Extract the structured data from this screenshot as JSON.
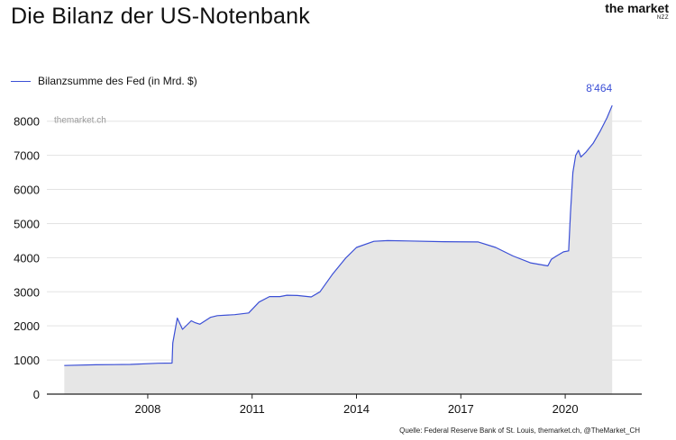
{
  "title": "Die Bilanz der US-Notenbank",
  "brand": {
    "name": "the market",
    "sub": "NZZ"
  },
  "source": "Quelle: Federal Reserve Bank of St. Louis, themarket.ch, @TheMarket_CH",
  "watermark": "themarket.ch",
  "colors": {
    "line": "#3b4fd6",
    "area": "#e6e6e6",
    "grid": "#e3e3e3",
    "axis": "#222222"
  },
  "chart_data": {
    "type": "area",
    "title": "Die Bilanz der US-Notenbank",
    "legend_position": "top-left",
    "grid": true,
    "ylim": [
      0,
      8600
    ],
    "xlim": [
      2005.1,
      2022.2
    ],
    "y_ticks": [
      0,
      1000,
      2000,
      3000,
      4000,
      5000,
      6000,
      7000,
      8000
    ],
    "y_tick_labels": [
      "0",
      "1000",
      "2000",
      "3000",
      "4000",
      "5000",
      "6000",
      "7000",
      "8000"
    ],
    "x_ticks": [
      2008,
      2011,
      2014,
      2017,
      2020
    ],
    "x_tick_labels": [
      "2008",
      "2011",
      "2014",
      "2017",
      "2020"
    ],
    "series": [
      {
        "name": "Bilanzsumme des Fed (in Mrd. $)",
        "end_label": "8'464",
        "x": [
          2005.6,
          2006.5,
          2007.5,
          2008.3,
          2008.7,
          2008.72,
          2008.85,
          2009.0,
          2009.25,
          2009.35,
          2009.5,
          2009.65,
          2009.8,
          2010.0,
          2010.5,
          2010.9,
          2011.2,
          2011.5,
          2011.8,
          2012.0,
          2012.3,
          2012.7,
          2012.95,
          2013.3,
          2013.7,
          2014.0,
          2014.5,
          2014.9,
          2015.5,
          2016.5,
          2017.5,
          2018.0,
          2018.5,
          2019.0,
          2019.5,
          2019.6,
          2019.75,
          2019.95,
          2020.1,
          2020.15,
          2020.22,
          2020.3,
          2020.38,
          2020.45,
          2020.6,
          2020.8,
          2021.0,
          2021.2,
          2021.35
        ],
        "values": [
          840,
          860,
          870,
          905,
          910,
          1500,
          2230,
          1900,
          2150,
          2100,
          2050,
          2150,
          2250,
          2300,
          2330,
          2380,
          2700,
          2860,
          2860,
          2900,
          2890,
          2850,
          3000,
          3500,
          4000,
          4300,
          4480,
          4500,
          4490,
          4470,
          4460,
          4300,
          4050,
          3850,
          3760,
          3950,
          4050,
          4170,
          4200,
          5300,
          6500,
          7000,
          7150,
          6950,
          7100,
          7350,
          7700,
          8100,
          8464
        ]
      }
    ]
  }
}
